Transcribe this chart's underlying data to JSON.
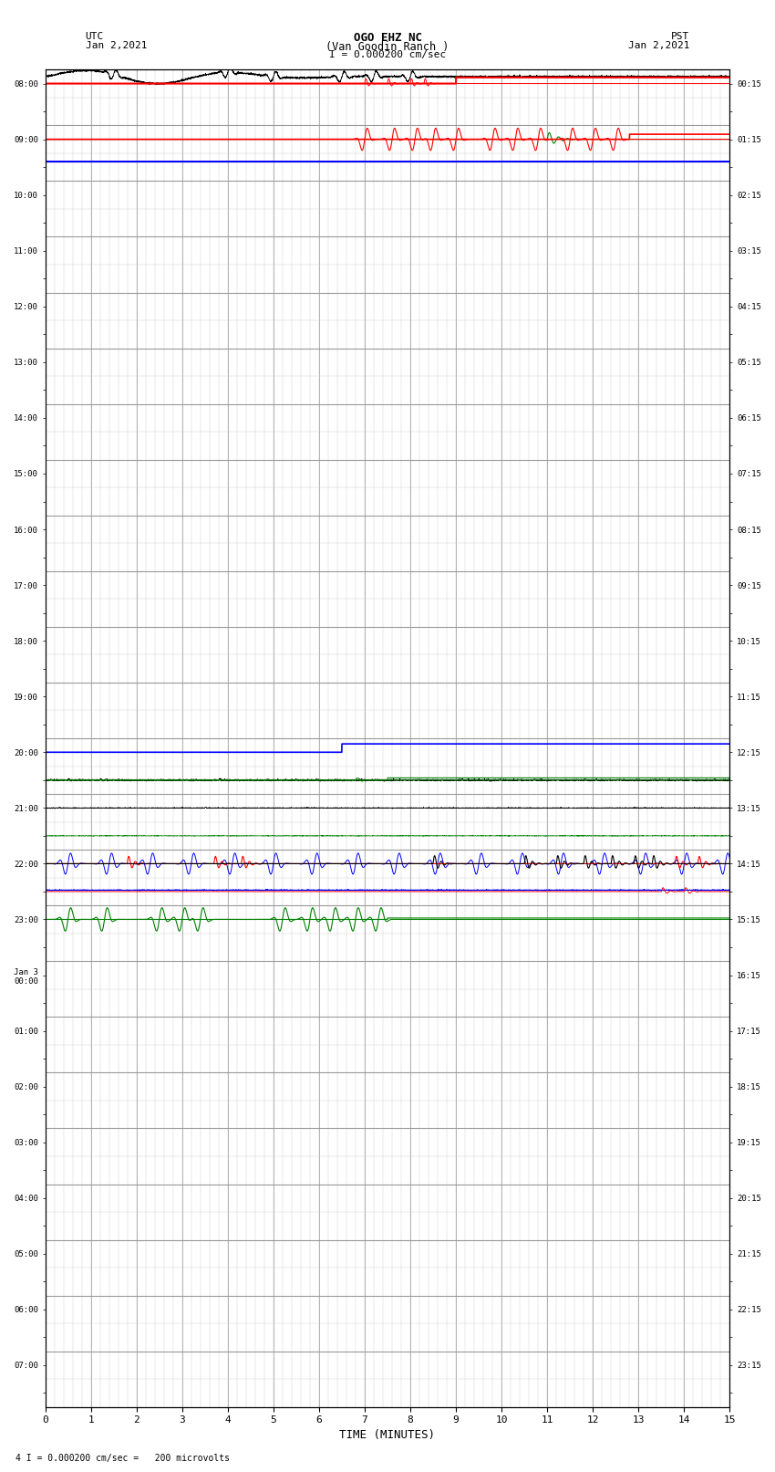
{
  "title_line1": "OGO EHZ NC",
  "title_line2": "(Van Goodin Ranch )",
  "scale_label": "I = 0.000200 cm/sec",
  "footer_label": "4 I = 0.000200 cm/sec =   200 microvolts",
  "utc_label": "UTC",
  "utc_date": "Jan 2,2021",
  "pst_label": "PST",
  "pst_date": "Jan 2,2021",
  "xlabel": "TIME (MINUTES)",
  "xlim": [
    0,
    15
  ],
  "xticks": [
    0,
    1,
    2,
    3,
    4,
    5,
    6,
    7,
    8,
    9,
    10,
    11,
    12,
    13,
    14,
    15
  ],
  "bg_color": "#ffffff",
  "grid_major_color": "#999999",
  "grid_minor_color": "#cccccc",
  "left_times_utc": [
    "08:00",
    "",
    "09:00",
    "",
    "10:00",
    "",
    "11:00",
    "",
    "12:00",
    "",
    "13:00",
    "",
    "14:00",
    "",
    "15:00",
    "",
    "16:00",
    "",
    "17:00",
    "",
    "18:00",
    "",
    "19:00",
    "",
    "20:00",
    "",
    "21:00",
    "",
    "22:00",
    "",
    "23:00",
    "",
    "Jan 3\n00:00",
    "",
    "01:00",
    "",
    "02:00",
    "",
    "03:00",
    "",
    "04:00",
    "",
    "05:00",
    "",
    "06:00",
    "",
    "07:00",
    ""
  ],
  "right_times_pst": [
    "00:15",
    "",
    "01:15",
    "",
    "02:15",
    "",
    "03:15",
    "",
    "04:15",
    "",
    "05:15",
    "",
    "06:15",
    "",
    "07:15",
    "",
    "08:15",
    "",
    "09:15",
    "",
    "10:15",
    "",
    "11:15",
    "",
    "12:15",
    "",
    "13:15",
    "",
    "14:15",
    "",
    "15:15",
    "",
    "16:15",
    "",
    "17:15",
    "",
    "18:15",
    "",
    "19:15",
    "",
    "20:15",
    "",
    "21:15",
    "",
    "22:15",
    "",
    "23:15",
    ""
  ],
  "n_rows": 48
}
